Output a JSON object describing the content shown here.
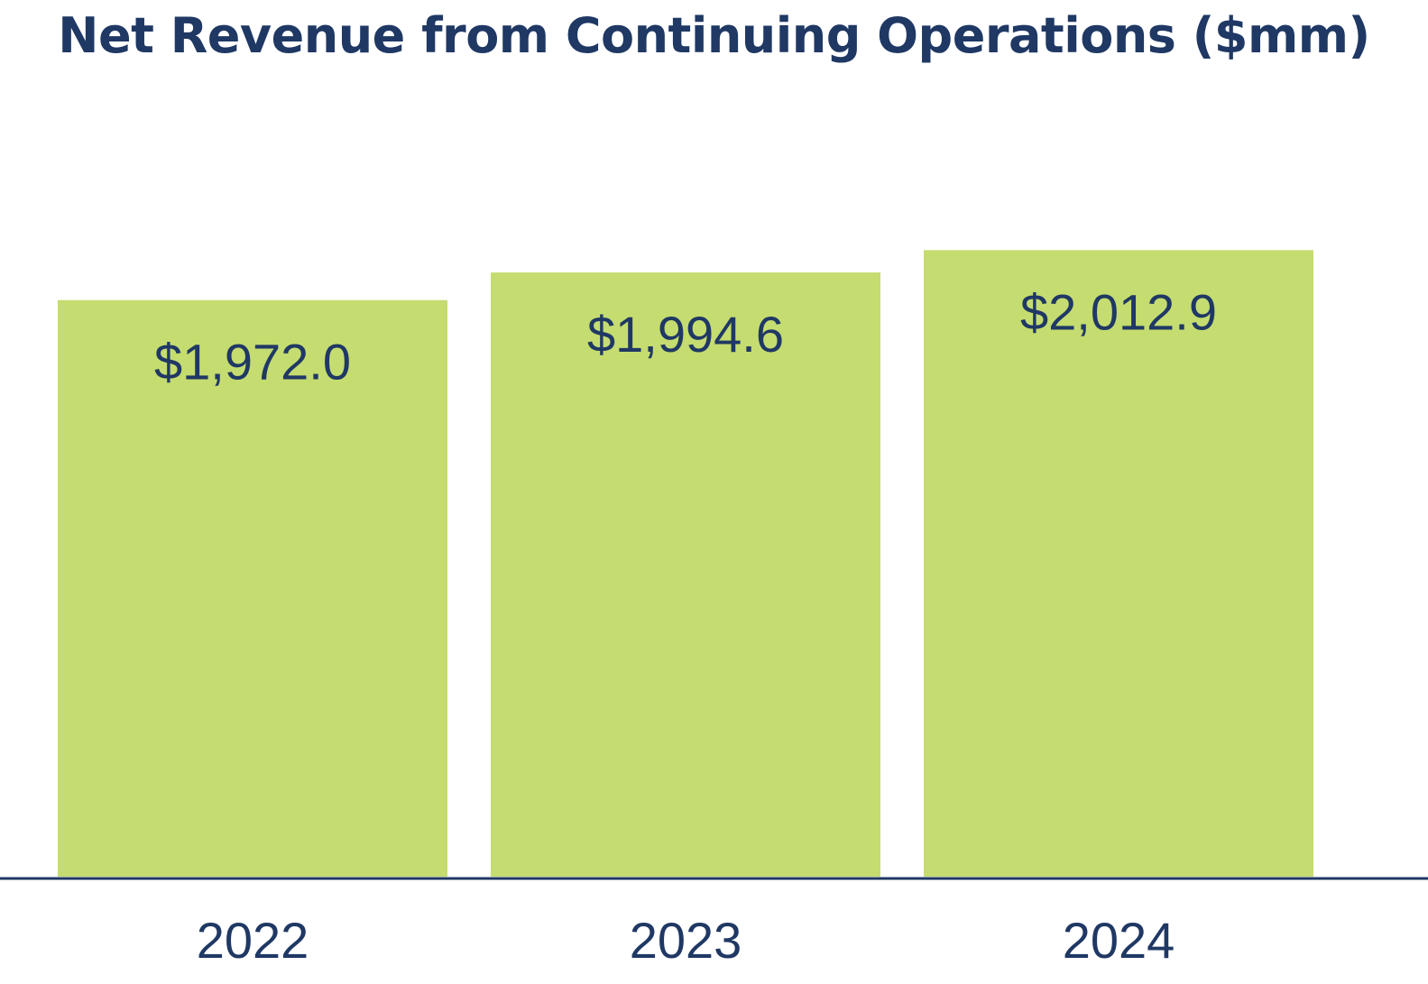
{
  "chart_data": {
    "type": "bar",
    "title": "Net Revenue from Continuing Operations ($mm)",
    "categories": [
      "2022",
      "2023",
      "2024"
    ],
    "values": [
      1972.0,
      1994.6,
      2012.9
    ],
    "data_labels": [
      "$1,972.0",
      "$1,994.6",
      "$2,012.9"
    ],
    "xlabel": "",
    "ylabel": "",
    "ylim": [
      1500,
      2070
    ],
    "grid": false,
    "legend": "none",
    "colors": {
      "bar": "#c5dc70",
      "text": "#1f3864",
      "axis": "#1f3864"
    }
  }
}
